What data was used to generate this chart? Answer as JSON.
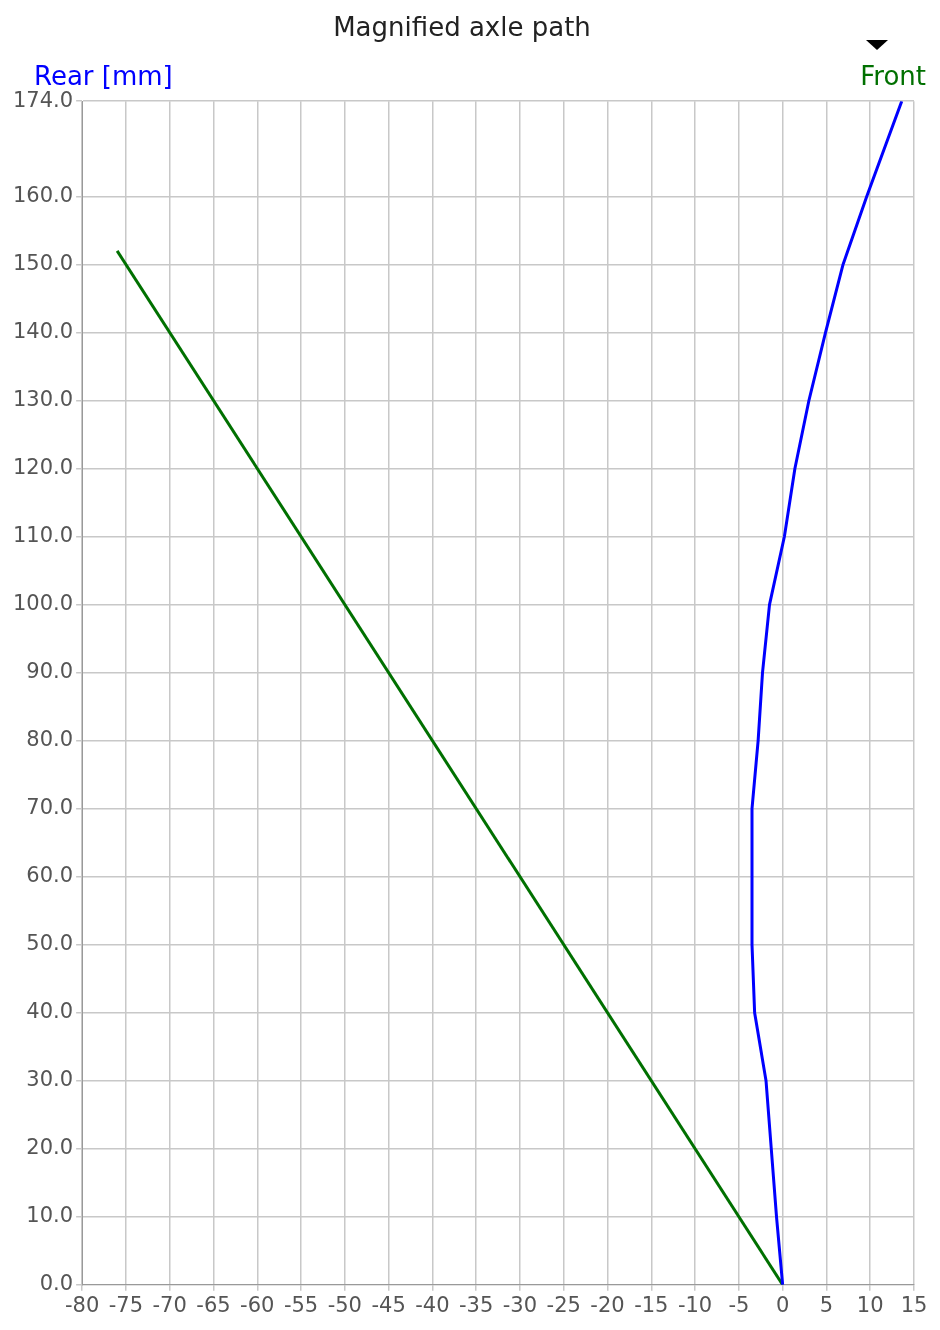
{
  "chart_data": {
    "type": "line",
    "title": "Magnified axle path",
    "marker": "none",
    "grid": true,
    "legend": false,
    "xlim": [
      -80,
      15
    ],
    "xticks": [
      -80,
      -75,
      -70,
      -65,
      -60,
      -55,
      -50,
      -45,
      -40,
      -35,
      -30,
      -25,
      -20,
      -15,
      -10,
      -5,
      0,
      5,
      10,
      15
    ],
    "ylim": [
      0,
      174
    ],
    "yticks": [
      {
        "value": 0,
        "label": "0.0"
      },
      {
        "value": 10,
        "label": "10.0"
      },
      {
        "value": 20,
        "label": "20.0"
      },
      {
        "value": 30,
        "label": "30.0"
      },
      {
        "value": 40,
        "label": "40.0"
      },
      {
        "value": 50,
        "label": "50.0"
      },
      {
        "value": 60,
        "label": "60.0"
      },
      {
        "value": 70,
        "label": "70.0"
      },
      {
        "value": 80,
        "label": "80.0"
      },
      {
        "value": 90,
        "label": "90.0"
      },
      {
        "value": 100,
        "label": "100.0"
      },
      {
        "value": 110,
        "label": "110.0"
      },
      {
        "value": 120,
        "label": "120.0"
      },
      {
        "value": 130,
        "label": "130.0"
      },
      {
        "value": 140,
        "label": "140.0"
      },
      {
        "value": 150,
        "label": "150.0"
      },
      {
        "value": 160,
        "label": "160.0"
      },
      {
        "value": 174,
        "label": "174.0"
      }
    ],
    "series": [
      {
        "name": "Rear [mm]",
        "color": "#0000ff",
        "x": [
          0,
          -0.7,
          -1.3,
          -1.9,
          -3.2,
          -3.5,
          -3.5,
          -2.8,
          -2.3,
          -1.5,
          0.2,
          1.4,
          3.0,
          4.9,
          6.9,
          9.6,
          13.6
        ],
        "values": [
          0,
          10,
          20,
          30,
          40,
          50,
          70,
          80,
          90,
          100,
          110,
          120,
          130,
          140,
          150,
          160,
          174
        ]
      },
      {
        "name": "Front",
        "color": "#007000",
        "x": [
          0,
          -76
        ],
        "values": [
          0,
          152
        ]
      }
    ]
  }
}
